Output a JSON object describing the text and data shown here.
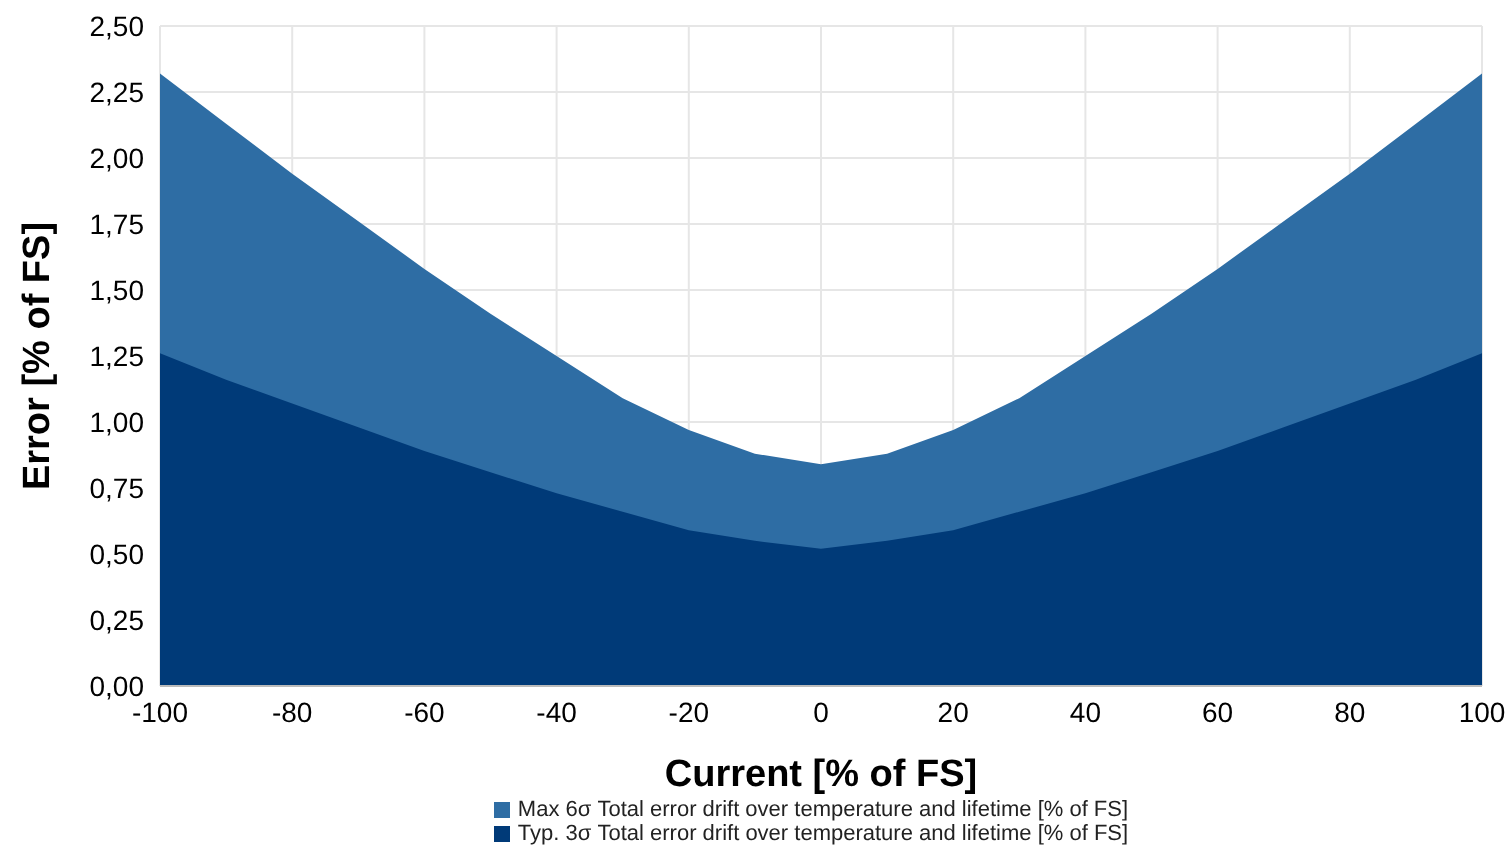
{
  "chart_data": {
    "type": "area",
    "xlabel": "Current [% of FS]",
    "ylabel": "Error [% of FS]",
    "x": [
      -100,
      -90,
      -80,
      -70,
      -60,
      -50,
      -40,
      -30,
      -20,
      -10,
      0,
      10,
      20,
      30,
      40,
      50,
      60,
      70,
      80,
      90,
      100
    ],
    "series": [
      {
        "name": "Max 6σ Total error drift over temperature and lifetime [% of FS]",
        "color": "#2e6da4",
        "values": [
          2.32,
          2.13,
          1.94,
          1.76,
          1.58,
          1.41,
          1.25,
          1.09,
          0.97,
          0.88,
          0.84,
          0.88,
          0.97,
          1.09,
          1.25,
          1.41,
          1.58,
          1.76,
          1.94,
          2.13,
          2.32
        ]
      },
      {
        "name": "Typ. 3σ Total error drift over temperature and lifetime [% of FS]",
        "color": "#003a78",
        "values": [
          1.26,
          1.16,
          1.07,
          0.98,
          0.89,
          0.81,
          0.73,
          0.66,
          0.59,
          0.55,
          0.52,
          0.55,
          0.59,
          0.66,
          0.73,
          0.81,
          0.89,
          0.98,
          1.07,
          1.16,
          1.26
        ]
      }
    ],
    "xlim": [
      -100,
      100
    ],
    "xticks": [
      -100,
      -80,
      -60,
      -40,
      -20,
      0,
      20,
      40,
      60,
      80,
      100
    ],
    "ylim": [
      0,
      2.5
    ],
    "yticks": [
      {
        "value": 0,
        "label": "0,00"
      },
      {
        "value": 0.25,
        "label": "0,25"
      },
      {
        "value": 0.5,
        "label": "0,50"
      },
      {
        "value": 0.75,
        "label": "0,75"
      },
      {
        "value": 1,
        "label": "1,00"
      },
      {
        "value": 1.25,
        "label": "1,25"
      },
      {
        "value": 1.5,
        "label": "1,50"
      },
      {
        "value": 1.75,
        "label": "1,75"
      },
      {
        "value": 2,
        "label": "2,00"
      },
      {
        "value": 2.25,
        "label": "2,25"
      },
      {
        "value": 2.5,
        "label": "2,50"
      }
    ],
    "grid": true,
    "legend": "bottom"
  }
}
